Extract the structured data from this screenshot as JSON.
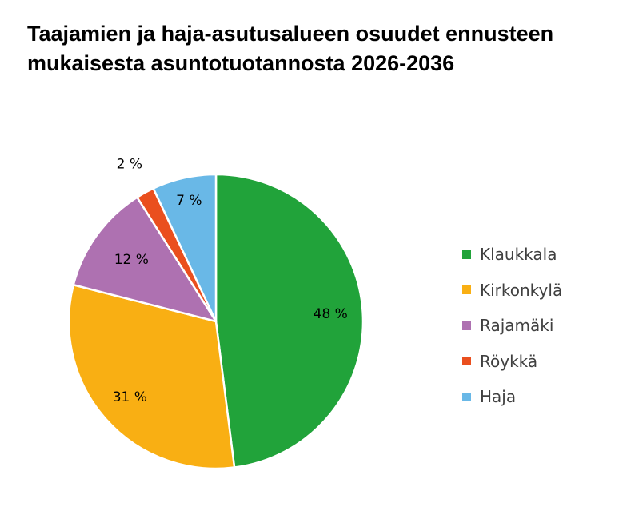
{
  "chart_data": {
    "type": "pie",
    "title": "Taajamien ja haja-asutusalueen osuudet ennusteen mukaisesta asuntotuotannosta 2026-2036",
    "categories": [
      "Klaukkala",
      "Kirkonkylä",
      "Rajamäki",
      "Röykkä",
      "Haja"
    ],
    "values": [
      48,
      31,
      12,
      2,
      7
    ],
    "data_labels": [
      "48 %",
      "31 %",
      "12 %",
      "2 %",
      "7 %"
    ],
    "colors": [
      "#21A33A",
      "#F9AF13",
      "#AE71B1",
      "#EA4F1E",
      "#69B8E7"
    ],
    "legend_position": "right"
  }
}
